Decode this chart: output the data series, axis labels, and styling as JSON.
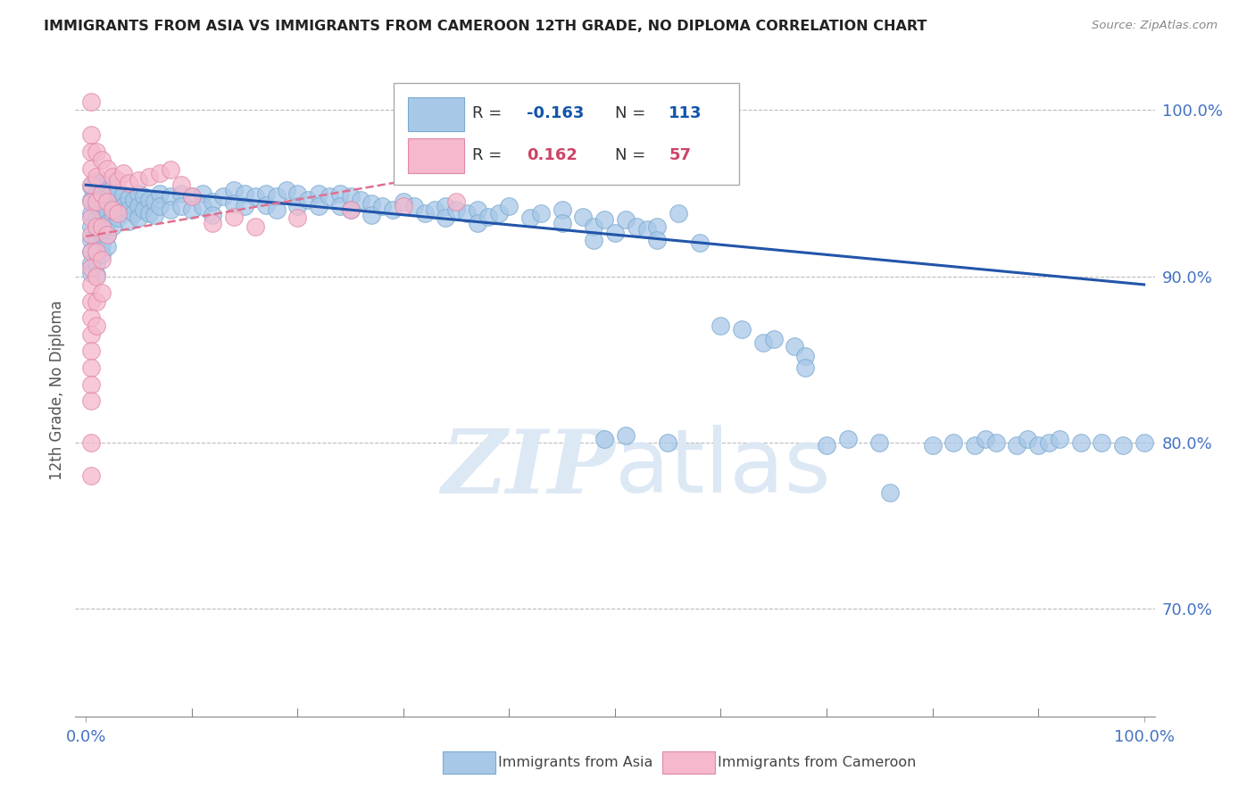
{
  "title": "IMMIGRANTS FROM ASIA VS IMMIGRANTS FROM CAMEROON 12TH GRADE, NO DIPLOMA CORRELATION CHART",
  "source": "Source: ZipAtlas.com",
  "ylabel": "12th Grade, No Diploma",
  "legend_label_blue": "Immigrants from Asia",
  "legend_label_pink": "Immigrants from Cameroon",
  "blue_color": "#a8c8e8",
  "blue_edge_color": "#7aaad0",
  "blue_line_color": "#2255aa",
  "pink_color": "#f5b8cc",
  "pink_edge_color": "#e088a8",
  "pink_line_color": "#e07090",
  "grid_color": "#bbbbbb",
  "title_color": "#222222",
  "axis_label_color": "#4472c4",
  "watermark_color": "#dde8f5",
  "legend_R_color": "#1155aa",
  "legend_pink_R_color": "#cc4466",
  "y_ticks": [
    0.7,
    0.8,
    0.9,
    1.0
  ],
  "ylim": [
    0.635,
    1.028
  ],
  "xlim": [
    -0.01,
    1.01
  ],
  "blue_trend_x": [
    0.0,
    1.0
  ],
  "blue_trend_y": [
    0.955,
    0.895
  ],
  "pink_trend_x": [
    0.0,
    0.55
  ],
  "pink_trend_y": [
    0.924,
    0.985
  ],
  "figsize": [
    14.06,
    8.92
  ],
  "dpi": 100,
  "blue_scatter": [
    [
      0.005,
      0.954
    ],
    [
      0.005,
      0.946
    ],
    [
      0.005,
      0.938
    ],
    [
      0.005,
      0.93
    ],
    [
      0.005,
      0.922
    ],
    [
      0.005,
      0.915
    ],
    [
      0.005,
      0.908
    ],
    [
      0.005,
      0.902
    ],
    [
      0.01,
      0.958
    ],
    [
      0.01,
      0.95
    ],
    [
      0.01,
      0.942
    ],
    [
      0.01,
      0.935
    ],
    [
      0.01,
      0.928
    ],
    [
      0.01,
      0.921
    ],
    [
      0.01,
      0.914
    ],
    [
      0.01,
      0.908
    ],
    [
      0.01,
      0.901
    ],
    [
      0.015,
      0.956
    ],
    [
      0.015,
      0.948
    ],
    [
      0.015,
      0.94
    ],
    [
      0.015,
      0.933
    ],
    [
      0.015,
      0.926
    ],
    [
      0.015,
      0.919
    ],
    [
      0.015,
      0.913
    ],
    [
      0.02,
      0.955
    ],
    [
      0.02,
      0.947
    ],
    [
      0.02,
      0.939
    ],
    [
      0.02,
      0.932
    ],
    [
      0.02,
      0.925
    ],
    [
      0.02,
      0.918
    ],
    [
      0.025,
      0.953
    ],
    [
      0.025,
      0.945
    ],
    [
      0.025,
      0.937
    ],
    [
      0.025,
      0.93
    ],
    [
      0.03,
      0.951
    ],
    [
      0.03,
      0.943
    ],
    [
      0.03,
      0.935
    ],
    [
      0.035,
      0.949
    ],
    [
      0.035,
      0.942
    ],
    [
      0.04,
      0.947
    ],
    [
      0.04,
      0.94
    ],
    [
      0.04,
      0.933
    ],
    [
      0.045,
      0.946
    ],
    [
      0.045,
      0.938
    ],
    [
      0.05,
      0.95
    ],
    [
      0.05,
      0.942
    ],
    [
      0.05,
      0.935
    ],
    [
      0.055,
      0.948
    ],
    [
      0.055,
      0.94
    ],
    [
      0.06,
      0.946
    ],
    [
      0.06,
      0.938
    ],
    [
      0.065,
      0.945
    ],
    [
      0.065,
      0.937
    ],
    [
      0.07,
      0.95
    ],
    [
      0.07,
      0.942
    ],
    [
      0.08,
      0.948
    ],
    [
      0.08,
      0.94
    ],
    [
      0.09,
      0.95
    ],
    [
      0.09,
      0.942
    ],
    [
      0.1,
      0.948
    ],
    [
      0.1,
      0.94
    ],
    [
      0.11,
      0.95
    ],
    [
      0.11,
      0.942
    ],
    [
      0.12,
      0.945
    ],
    [
      0.12,
      0.937
    ],
    [
      0.13,
      0.948
    ],
    [
      0.14,
      0.952
    ],
    [
      0.14,
      0.944
    ],
    [
      0.15,
      0.95
    ],
    [
      0.15,
      0.942
    ],
    [
      0.16,
      0.948
    ],
    [
      0.17,
      0.95
    ],
    [
      0.17,
      0.943
    ],
    [
      0.18,
      0.948
    ],
    [
      0.18,
      0.94
    ],
    [
      0.19,
      0.952
    ],
    [
      0.2,
      0.95
    ],
    [
      0.2,
      0.942
    ],
    [
      0.21,
      0.946
    ],
    [
      0.22,
      0.95
    ],
    [
      0.22,
      0.942
    ],
    [
      0.23,
      0.948
    ],
    [
      0.24,
      0.95
    ],
    [
      0.24,
      0.942
    ],
    [
      0.25,
      0.948
    ],
    [
      0.25,
      0.94
    ],
    [
      0.26,
      0.946
    ],
    [
      0.27,
      0.944
    ],
    [
      0.27,
      0.937
    ],
    [
      0.28,
      0.942
    ],
    [
      0.29,
      0.94
    ],
    [
      0.3,
      0.945
    ],
    [
      0.31,
      0.942
    ],
    [
      0.32,
      0.938
    ],
    [
      0.33,
      0.94
    ],
    [
      0.34,
      0.942
    ],
    [
      0.34,
      0.935
    ],
    [
      0.35,
      0.94
    ],
    [
      0.36,
      0.938
    ],
    [
      0.37,
      0.94
    ],
    [
      0.37,
      0.932
    ],
    [
      0.38,
      0.936
    ],
    [
      0.39,
      0.938
    ],
    [
      0.4,
      0.942
    ],
    [
      0.42,
      0.935
    ],
    [
      0.43,
      0.938
    ],
    [
      0.45,
      0.94
    ],
    [
      0.45,
      0.932
    ],
    [
      0.47,
      0.936
    ],
    [
      0.48,
      0.93
    ],
    [
      0.48,
      0.922
    ],
    [
      0.49,
      0.934
    ],
    [
      0.5,
      0.926
    ],
    [
      0.51,
      0.934
    ],
    [
      0.52,
      0.93
    ],
    [
      0.53,
      0.928
    ],
    [
      0.54,
      0.93
    ],
    [
      0.54,
      0.922
    ],
    [
      0.56,
      0.938
    ],
    [
      0.58,
      0.92
    ],
    [
      0.6,
      0.87
    ],
    [
      0.62,
      0.868
    ],
    [
      0.64,
      0.86
    ],
    [
      0.65,
      0.862
    ],
    [
      0.67,
      0.858
    ],
    [
      0.68,
      0.852
    ],
    [
      0.68,
      0.845
    ],
    [
      0.7,
      0.798
    ],
    [
      0.72,
      0.802
    ],
    [
      0.75,
      0.8
    ],
    [
      0.8,
      0.798
    ],
    [
      0.82,
      0.8
    ],
    [
      0.84,
      0.798
    ],
    [
      0.85,
      0.802
    ],
    [
      0.86,
      0.8
    ],
    [
      0.88,
      0.798
    ],
    [
      0.89,
      0.802
    ],
    [
      0.9,
      0.798
    ],
    [
      0.91,
      0.8
    ],
    [
      0.92,
      0.802
    ],
    [
      0.94,
      0.8
    ],
    [
      0.96,
      0.8
    ],
    [
      0.98,
      0.798
    ],
    [
      1.0,
      0.8
    ],
    [
      0.76,
      0.77
    ],
    [
      0.55,
      0.8
    ],
    [
      0.49,
      0.802
    ],
    [
      0.51,
      0.804
    ]
  ],
  "pink_scatter": [
    [
      0.005,
      1.005
    ],
    [
      0.005,
      0.985
    ],
    [
      0.005,
      0.975
    ],
    [
      0.005,
      0.965
    ],
    [
      0.005,
      0.955
    ],
    [
      0.005,
      0.945
    ],
    [
      0.005,
      0.935
    ],
    [
      0.005,
      0.925
    ],
    [
      0.005,
      0.915
    ],
    [
      0.005,
      0.905
    ],
    [
      0.005,
      0.895
    ],
    [
      0.005,
      0.885
    ],
    [
      0.005,
      0.875
    ],
    [
      0.005,
      0.865
    ],
    [
      0.005,
      0.855
    ],
    [
      0.005,
      0.845
    ],
    [
      0.005,
      0.835
    ],
    [
      0.005,
      0.825
    ],
    [
      0.01,
      0.975
    ],
    [
      0.01,
      0.96
    ],
    [
      0.01,
      0.945
    ],
    [
      0.01,
      0.93
    ],
    [
      0.01,
      0.915
    ],
    [
      0.01,
      0.9
    ],
    [
      0.01,
      0.885
    ],
    [
      0.01,
      0.87
    ],
    [
      0.015,
      0.97
    ],
    [
      0.015,
      0.95
    ],
    [
      0.015,
      0.93
    ],
    [
      0.015,
      0.91
    ],
    [
      0.015,
      0.89
    ],
    [
      0.02,
      0.965
    ],
    [
      0.02,
      0.945
    ],
    [
      0.02,
      0.925
    ],
    [
      0.025,
      0.96
    ],
    [
      0.025,
      0.94
    ],
    [
      0.03,
      0.958
    ],
    [
      0.03,
      0.938
    ],
    [
      0.035,
      0.962
    ],
    [
      0.04,
      0.956
    ],
    [
      0.05,
      0.958
    ],
    [
      0.06,
      0.96
    ],
    [
      0.07,
      0.962
    ],
    [
      0.08,
      0.964
    ],
    [
      0.09,
      0.955
    ],
    [
      0.1,
      0.948
    ],
    [
      0.12,
      0.932
    ],
    [
      0.14,
      0.936
    ],
    [
      0.16,
      0.93
    ],
    [
      0.2,
      0.935
    ],
    [
      0.25,
      0.94
    ],
    [
      0.3,
      0.942
    ],
    [
      0.35,
      0.945
    ],
    [
      0.005,
      0.8
    ],
    [
      0.005,
      0.78
    ]
  ]
}
